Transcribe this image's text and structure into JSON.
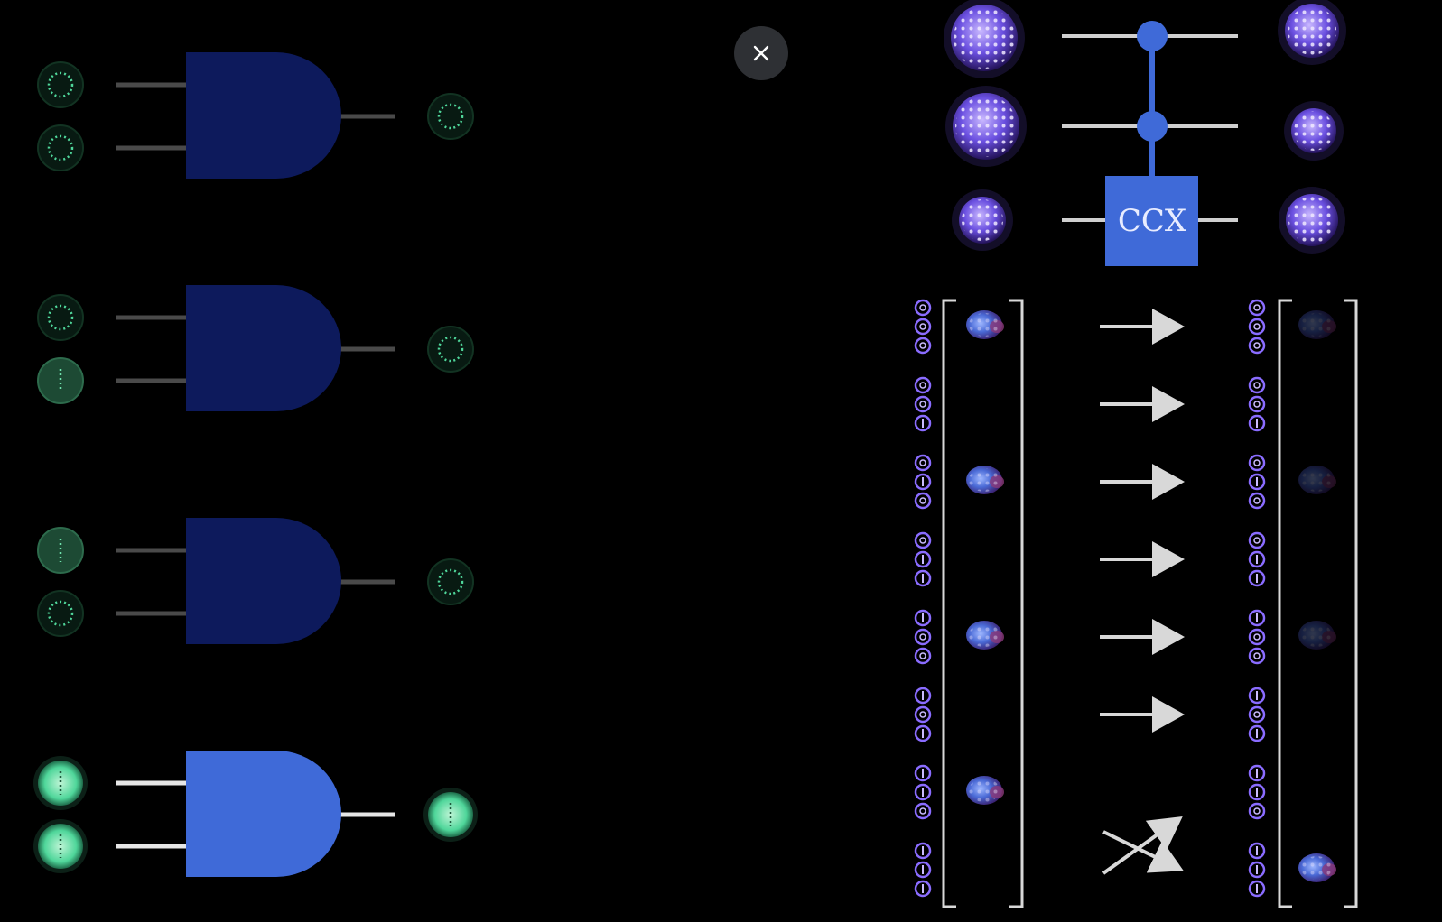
{
  "close_button": {
    "icon": "close-icon",
    "label": "×"
  },
  "and_gates": [
    {
      "inputs": [
        "0",
        "0"
      ],
      "output": "0",
      "active": false
    },
    {
      "inputs": [
        "0",
        "1"
      ],
      "output": "0",
      "active": false
    },
    {
      "inputs": [
        "1",
        "0"
      ],
      "output": "0",
      "active": false
    },
    {
      "inputs": [
        "1",
        "1"
      ],
      "output": "1",
      "active": true
    }
  ],
  "ccx_gate": {
    "label": "CCX"
  },
  "state_table": {
    "inputs": [
      "000",
      "001",
      "010",
      "011",
      "100",
      "101",
      "110",
      "111"
    ],
    "outputs": [
      "000",
      "001",
      "010",
      "011",
      "100",
      "101",
      "110",
      "111"
    ],
    "input_amplitude_rows": [
      0,
      2,
      4,
      6
    ],
    "output_amplitude_rows": [
      0,
      2,
      4,
      7
    ],
    "mappings": [
      "straight",
      "straight",
      "straight",
      "straight",
      "straight",
      "straight",
      "swap-7-8"
    ]
  },
  "colors": {
    "gate_dim": "#0d1a5c",
    "gate_active": "#3f6ad8",
    "bit_green": "#4fd69a",
    "qubit_purple": "#8a6cff",
    "ccx_blue": "#3f6ad8",
    "arrow": "#d8d8d8"
  }
}
